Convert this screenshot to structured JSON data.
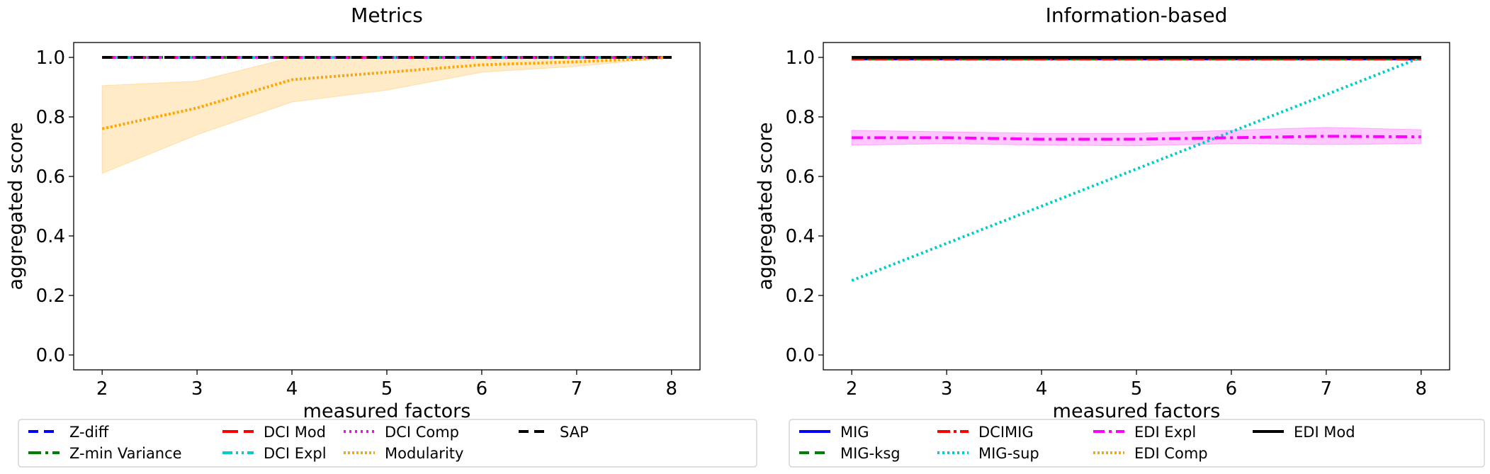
{
  "chart_data": [
    {
      "type": "line",
      "title": "Metrics",
      "xlabel": "measured factors",
      "ylabel": "aggregated score",
      "x": [
        2,
        3,
        4,
        5,
        6,
        7,
        8
      ],
      "xlim": [
        1.7,
        8.3
      ],
      "ylim": [
        -0.05,
        1.05
      ],
      "xticks": [
        "2",
        "3",
        "4",
        "5",
        "6",
        "7",
        "8"
      ],
      "yticks": [
        "0.0",
        "0.2",
        "0.4",
        "0.6",
        "0.8",
        "1.0"
      ],
      "grid": false,
      "legend_position": "bottom",
      "legend_columns": 5,
      "legend": [
        "Z-diff",
        "Z-min Variance",
        "DCI Mod",
        "DCI Expl",
        "DCI Comp",
        "Modularity",
        "SAP"
      ],
      "series": [
        {
          "name": "Z-diff",
          "color": "#0000ff",
          "dash": "14 8",
          "values": [
            1,
            1,
            1,
            1,
            1,
            1,
            1
          ]
        },
        {
          "name": "Z-min Variance",
          "color": "#008000",
          "dash": "18 6 4 6",
          "values": [
            1,
            1,
            1,
            1,
            1,
            1,
            1
          ]
        },
        {
          "name": "DCI Mod",
          "color": "#ff0000",
          "dash": "22 8",
          "values": [
            1,
            1,
            1,
            1,
            1,
            1,
            1
          ]
        },
        {
          "name": "DCI Expl",
          "color": "#00cccc",
          "dash": "14 5 3 5 3 5",
          "values": [
            1,
            1,
            1,
            1,
            1,
            1,
            1
          ]
        },
        {
          "name": "DCI Comp",
          "color": "#ff00ff",
          "dash": "3 5",
          "values": [
            1,
            1,
            1,
            1,
            1,
            1,
            1
          ]
        },
        {
          "name": "Modularity",
          "color": "#ffa500",
          "dash": "3 3",
          "values": [
            0.76,
            0.83,
            0.925,
            0.95,
            0.975,
            0.985,
            1.0
          ],
          "band_low": [
            0.61,
            0.74,
            0.85,
            0.89,
            0.95,
            0.97,
            1.0
          ],
          "band_high": [
            0.905,
            0.92,
            1.0,
            1.0,
            1.0,
            1.0,
            1.0
          ]
        },
        {
          "name": "SAP",
          "color": "#000000",
          "dash": "14 8",
          "values": [
            1,
            1,
            1,
            1,
            1,
            1,
            1
          ]
        }
      ]
    },
    {
      "type": "line",
      "title": "Information-based",
      "xlabel": "measured factors",
      "ylabel": "aggregated score",
      "x": [
        2,
        3,
        4,
        5,
        6,
        7,
        8
      ],
      "xlim": [
        1.7,
        8.3
      ],
      "ylim": [
        -0.05,
        1.05
      ],
      "xticks": [
        "2",
        "3",
        "4",
        "5",
        "6",
        "7",
        "8"
      ],
      "yticks": [
        "0.0",
        "0.2",
        "0.4",
        "0.6",
        "0.8",
        "1.0"
      ],
      "grid": false,
      "legend_position": "bottom",
      "legend_columns": 5,
      "legend": [
        "MIG",
        "MIG-ksg",
        "DCIMIG",
        "MIG-sup",
        "EDI Expl",
        "EDI Comp",
        "EDI Mod"
      ],
      "series": [
        {
          "name": "MIG",
          "color": "#0000ff",
          "dash": "",
          "values": [
            0.995,
            0.995,
            0.995,
            0.995,
            0.995,
            0.995,
            0.995
          ]
        },
        {
          "name": "MIG-ksg",
          "color": "#008000",
          "dash": "14 8",
          "values": [
            0.995,
            0.995,
            0.995,
            0.995,
            0.995,
            0.995,
            0.995
          ]
        },
        {
          "name": "DCIMIG",
          "color": "#ff0000",
          "dash": "18 5 4 5",
          "values": [
            0.995,
            0.995,
            0.995,
            0.995,
            0.995,
            0.995,
            0.995
          ]
        },
        {
          "name": "MIG-sup",
          "color": "#00cccc",
          "dash": "3 4",
          "values": [
            0.25,
            0.375,
            0.5,
            0.625,
            0.75,
            0.875,
            1.0
          ]
        },
        {
          "name": "EDI Expl",
          "color": "#ff00ff",
          "dash": "16 6 4 6",
          "values": [
            0.73,
            0.73,
            0.725,
            0.725,
            0.73,
            0.735,
            0.733
          ],
          "band_low": [
            0.705,
            0.71,
            0.705,
            0.703,
            0.71,
            0.707,
            0.71
          ],
          "band_high": [
            0.755,
            0.75,
            0.745,
            0.745,
            0.755,
            0.765,
            0.757
          ]
        },
        {
          "name": "EDI Comp",
          "color": "#ffa500",
          "dash": "3 3",
          "values": [
            1,
            1,
            1,
            1,
            1,
            1,
            1
          ]
        },
        {
          "name": "EDI Mod",
          "color": "#000000",
          "dash": "",
          "values": [
            1.0,
            1.0,
            1.0,
            1.0,
            1.0,
            1.0,
            1.0
          ]
        }
      ]
    }
  ]
}
